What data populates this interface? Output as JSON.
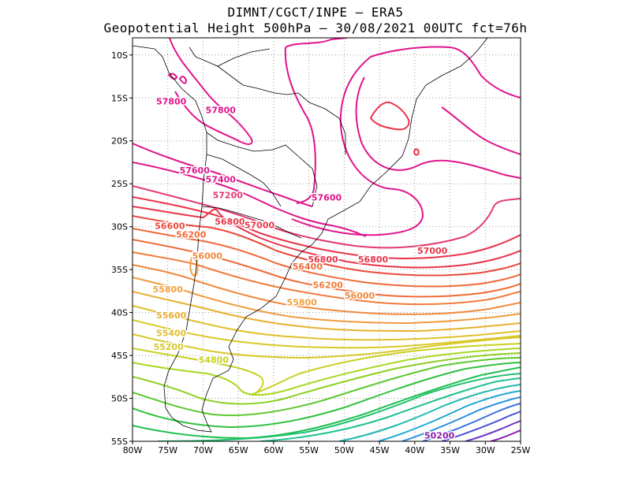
{
  "header": {
    "line1": "DIMNT/CGCT/INPE —  ERA5",
    "line2": "Geopotential Height 500hPa —  30/08/2021 00UTC fct=76h"
  },
  "map": {
    "lon_range": [
      -80,
      -25
    ],
    "lat_range": [
      -55,
      -8
    ],
    "lon_ticks": [
      "80W",
      "75W",
      "70W",
      "65W",
      "60W",
      "55W",
      "50W",
      "45W",
      "40W",
      "35W",
      "30W",
      "25W"
    ],
    "lat_ticks": [
      "10S",
      "15S",
      "20S",
      "25S",
      "30S",
      "35S",
      "40S",
      "45S",
      "50S",
      "55S"
    ],
    "grid": "dotted",
    "contour_labels": [
      {
        "text": "57800",
        "lon": -74.5,
        "lat": -15.4,
        "color": "#e0148c"
      },
      {
        "text": "57800",
        "lon": -67.5,
        "lat": -16.4,
        "color": "#e0148c"
      },
      {
        "text": "57600",
        "lon": -71.2,
        "lat": -23.4,
        "color": "#e0148c"
      },
      {
        "text": "57400",
        "lon": -67.5,
        "lat": -24.5,
        "color": "#e0148c"
      },
      {
        "text": "57600",
        "lon": -52.5,
        "lat": -26.6,
        "color": "#e0148c"
      },
      {
        "text": "57200",
        "lon": -66.5,
        "lat": -26.3,
        "color": "#e23a70"
      },
      {
        "text": "56800",
        "lon": -66.2,
        "lat": -29.4,
        "color": "#e8344a"
      },
      {
        "text": "57000",
        "lon": -62.0,
        "lat": -29.8,
        "color": "#e8344a"
      },
      {
        "text": "56600",
        "lon": -74.7,
        "lat": -29.9,
        "color": "#ea4a3c"
      },
      {
        "text": "56200",
        "lon": -71.7,
        "lat": -30.9,
        "color": "#ee6a3a"
      },
      {
        "text": "56000",
        "lon": -69.4,
        "lat": -33.4,
        "color": "#f0883c"
      },
      {
        "text": "56800",
        "lon": -53.0,
        "lat": -33.8,
        "color": "#e8344a"
      },
      {
        "text": "56400",
        "lon": -55.2,
        "lat": -34.6,
        "color": "#ee6a3a"
      },
      {
        "text": "56800",
        "lon": -45.9,
        "lat": -33.8,
        "color": "#e8344a"
      },
      {
        "text": "57000",
        "lon": -37.5,
        "lat": -32.8,
        "color": "#e8344a"
      },
      {
        "text": "56200",
        "lon": -52.3,
        "lat": -36.8,
        "color": "#f07a3a"
      },
      {
        "text": "56000",
        "lon": -47.8,
        "lat": -38.0,
        "color": "#f0883c"
      },
      {
        "text": "55800",
        "lon": -75.0,
        "lat": -37.3,
        "color": "#f0a03e"
      },
      {
        "text": "55800",
        "lon": -56.0,
        "lat": -38.8,
        "color": "#f0a03e"
      },
      {
        "text": "55600",
        "lon": -74.5,
        "lat": -40.3,
        "color": "#e8b030"
      },
      {
        "text": "55400",
        "lon": -74.5,
        "lat": -42.4,
        "color": "#e0c02c"
      },
      {
        "text": "55200",
        "lon": -74.9,
        "lat": -44.0,
        "color": "#d8c828"
      },
      {
        "text": "54800",
        "lon": -68.5,
        "lat": -45.5,
        "color": "#c8d020"
      },
      {
        "text": "50200",
        "lon": -36.5,
        "lat": -54.3,
        "color": "#8a1fb0"
      }
    ]
  }
}
